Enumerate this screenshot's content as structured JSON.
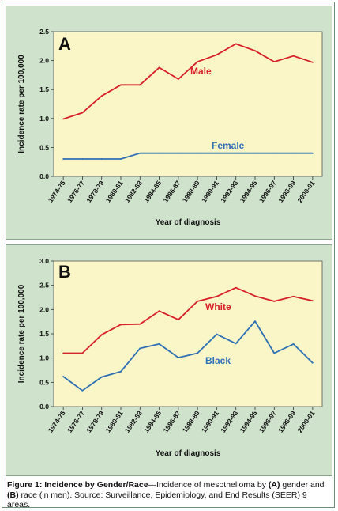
{
  "colors": {
    "panel_bg": "#cfe3cc",
    "plot_bg": "#fbf6c7",
    "red": "#d7202a",
    "blue": "#2f6fb4"
  },
  "chart_data": [
    {
      "type": "line",
      "panel": "A",
      "xlabel": "Year of diagnosis",
      "ylabel": "Incidence rate per 100,000",
      "ylim": [
        0,
        2.5
      ],
      "yticks": [
        "0.0",
        "0.5",
        "1.0",
        "1.5",
        "2.0",
        "2.5"
      ],
      "categories": [
        "1974-75",
        "1976-77",
        "1978-79",
        "1980-81",
        "1982-83",
        "1984-85",
        "1986-87",
        "1988-89",
        "1990-91",
        "1992-93",
        "1994-95",
        "1996-97",
        "1998-99",
        "2000-01"
      ],
      "series": [
        {
          "name": "Male",
          "color": "#d7202a",
          "values": [
            0.99,
            1.1,
            1.39,
            1.58,
            1.58,
            1.88,
            1.68,
            1.98,
            2.1,
            2.29,
            2.17,
            1.98,
            2.08,
            1.97
          ]
        },
        {
          "name": "Female",
          "color": "#2f6fb4",
          "values": [
            0.3,
            0.3,
            0.3,
            0.3,
            0.4,
            0.4,
            0.4,
            0.4,
            0.4,
            0.4,
            0.4,
            0.4,
            0.4,
            0.4
          ]
        }
      ]
    },
    {
      "type": "line",
      "panel": "B",
      "xlabel": "Year of diagnosis",
      "ylabel": "Incidence rate per 100,000",
      "ylim": [
        0,
        3.0
      ],
      "yticks": [
        "0.0",
        "0.5",
        "1.0",
        "1.5",
        "2.0",
        "2.5",
        "3.0"
      ],
      "categories": [
        "1974-75",
        "1976-77",
        "1978-79",
        "1980-81",
        "1982-83",
        "1984-85",
        "1986-87",
        "1988-89",
        "1990-91",
        "1992-93",
        "1994-95",
        "1996-97",
        "1998-99",
        "2000-01"
      ],
      "series": [
        {
          "name": "White",
          "color": "#d7202a",
          "values": [
            1.1,
            1.1,
            1.48,
            1.69,
            1.7,
            1.97,
            1.79,
            2.17,
            2.27,
            2.45,
            2.28,
            2.17,
            2.27,
            2.18
          ]
        },
        {
          "name": "Black",
          "color": "#2f6fb4",
          "values": [
            0.62,
            0.33,
            0.61,
            0.72,
            1.2,
            1.29,
            1.01,
            1.1,
            1.49,
            1.3,
            1.76,
            1.1,
            1.29,
            0.9
          ]
        }
      ]
    }
  ],
  "caption": {
    "figure_label": "Figure 1: Incidence by Gender/Race",
    "text_1": "—Incidence of mesothelioma by ",
    "a": "(A)",
    "text_2": " gender and ",
    "b": "(B)",
    "text_3": " race (in men). Source: Surveillance, Epidemiology, and End Results (SEER) 9 areas."
  }
}
